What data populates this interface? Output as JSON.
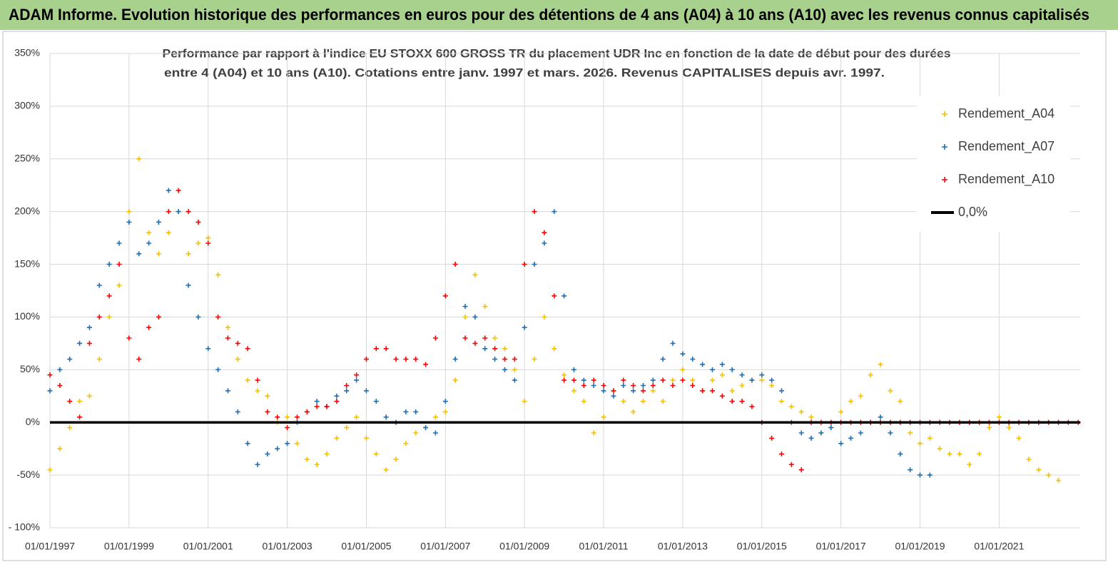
{
  "chart_data": {
    "type": "scatter",
    "title": "ADAM Informe. Evolution historique des performances en euros pour des détentions de 4 ans (A04) à 10 ans (A10) avec les revenus connus capitalisés",
    "subtitle": [
      "Performance par rapport à l'indice EU STOXX 600 GROSS TR  du placement UDR Inc en fonction de la date de début pour des durées",
      "entre 4 (A04) et 10 ans (A10). Cotations entre janv. 1997 et mars. 2026. Revenus CAPITALISES depuis avr. 1997."
    ],
    "x": [
      1997,
      1997.25,
      1997.5,
      1997.75,
      1998,
      1998.25,
      1998.5,
      1998.75,
      1999,
      1999.25,
      1999.5,
      1999.75,
      2000,
      2000.25,
      2000.5,
      2000.75,
      2001,
      2001.25,
      2001.5,
      2001.75,
      2002,
      2002.25,
      2002.5,
      2002.75,
      2003,
      2003.25,
      2003.5,
      2003.75,
      2004,
      2004.25,
      2004.5,
      2004.75,
      2005,
      2005.25,
      2005.5,
      2005.75,
      2006,
      2006.25,
      2006.5,
      2006.75,
      2007,
      2007.25,
      2007.5,
      2007.75,
      2008,
      2008.25,
      2008.5,
      2008.75,
      2009,
      2009.25,
      2009.5,
      2009.75,
      2010,
      2010.25,
      2010.5,
      2010.75,
      2011,
      2011.25,
      2011.5,
      2011.75,
      2012,
      2012.25,
      2012.5,
      2012.75,
      2013,
      2013.25,
      2013.5,
      2013.75,
      2014,
      2014.25,
      2014.5,
      2014.75,
      2015,
      2015.25,
      2015.5,
      2015.75,
      2016,
      2016.25,
      2016.5,
      2016.75,
      2017,
      2017.25,
      2017.5,
      2017.75,
      2018,
      2018.25,
      2018.5,
      2018.75,
      2019,
      2019.25,
      2019.5,
      2019.75,
      2020,
      2020.25,
      2020.5,
      2020.75,
      2021,
      2021.25,
      2021.5,
      2021.75,
      2022,
      2022.25,
      2022.5,
      2022.75,
      2023
    ],
    "series": [
      {
        "name": "Rendement_A04",
        "color": "#f5c000",
        "values": [
          -45,
          -25,
          -5,
          20,
          25,
          60,
          100,
          130,
          200,
          250,
          180,
          160,
          180,
          200,
          160,
          170,
          175,
          140,
          90,
          60,
          40,
          30,
          25,
          0,
          5,
          -20,
          -35,
          -40,
          -30,
          -15,
          -5,
          5,
          -15,
          -30,
          -45,
          -35,
          -20,
          -10,
          -5,
          5,
          10,
          40,
          100,
          140,
          110,
          80,
          70,
          50,
          20,
          60,
          100,
          70,
          45,
          30,
          20,
          -10,
          5,
          30,
          20,
          10,
          20,
          30,
          20,
          40,
          50,
          40,
          30,
          40,
          45,
          30,
          35,
          40,
          40,
          35,
          20,
          15,
          10,
          5,
          -10,
          -5,
          10,
          20,
          25,
          45,
          55,
          30,
          20,
          -10,
          -20,
          -15,
          -25,
          -30,
          -30,
          -40,
          -30,
          -5,
          5,
          -5,
          -15,
          -35,
          -45,
          -50,
          -55,
          null,
          null
        ]
      },
      {
        "name": "Rendement_A07",
        "color": "#1f6fb5",
        "values": [
          30,
          50,
          60,
          75,
          90,
          130,
          150,
          170,
          190,
          160,
          170,
          190,
          220,
          200,
          130,
          100,
          70,
          50,
          30,
          10,
          -20,
          -40,
          -30,
          -25,
          -20,
          0,
          10,
          20,
          15,
          25,
          30,
          40,
          30,
          20,
          5,
          0,
          10,
          10,
          -5,
          -10,
          20,
          60,
          110,
          100,
          70,
          60,
          50,
          40,
          90,
          150,
          170,
          200,
          120,
          50,
          40,
          35,
          30,
          25,
          35,
          30,
          35,
          40,
          60,
          75,
          65,
          60,
          55,
          50,
          55,
          50,
          45,
          40,
          45,
          40,
          30,
          0,
          -10,
          -15,
          -10,
          -5,
          -20,
          -15,
          -10,
          0,
          5,
          -10,
          -30,
          -45,
          -50,
          -50,
          null,
          null,
          null,
          null,
          null,
          null,
          null,
          null,
          null,
          null,
          null,
          null,
          null,
          null,
          null
        ]
      },
      {
        "name": "Rendement_A10",
        "color": "#ff0000",
        "values": [
          45,
          35,
          20,
          5,
          75,
          100,
          120,
          150,
          80,
          60,
          90,
          100,
          200,
          220,
          200,
          190,
          170,
          100,
          80,
          75,
          70,
          40,
          10,
          5,
          -5,
          5,
          10,
          15,
          15,
          20,
          35,
          45,
          60,
          70,
          70,
          60,
          60,
          60,
          55,
          80,
          120,
          150,
          80,
          75,
          80,
          70,
          60,
          60,
          150,
          200,
          180,
          120,
          40,
          40,
          35,
          40,
          35,
          30,
          40,
          35,
          30,
          35,
          40,
          35,
          40,
          35,
          30,
          30,
          25,
          20,
          20,
          15,
          0,
          -15,
          -30,
          -40,
          -45,
          0,
          0,
          0,
          0,
          0,
          0,
          0,
          0,
          0,
          0,
          0,
          0,
          0,
          0,
          0,
          0,
          0,
          0,
          0,
          0,
          0,
          0,
          0,
          0,
          0,
          0,
          0,
          0
        ]
      },
      {
        "name": "0,0%",
        "color": "#000000",
        "type": "line",
        "x": [
          1997,
          2023.05
        ],
        "values": [
          0,
          0
        ]
      }
    ],
    "xlim": [
      1997,
      2023.05
    ],
    "xticks": [
      {
        "value": 1997,
        "label": "01/01/1997"
      },
      {
        "value": 1999,
        "label": "01/01/1999"
      },
      {
        "value": 2001,
        "label": "01/01/2001"
      },
      {
        "value": 2003,
        "label": "01/01/2003"
      },
      {
        "value": 2005,
        "label": "01/01/2005"
      },
      {
        "value": 2007,
        "label": "01/01/2007"
      },
      {
        "value": 2009,
        "label": "01/01/2009"
      },
      {
        "value": 2011,
        "label": "01/01/2011"
      },
      {
        "value": 2013,
        "label": "01/01/2013"
      },
      {
        "value": 2015,
        "label": "01/01/2015"
      },
      {
        "value": 2017,
        "label": "01/01/2017"
      },
      {
        "value": 2019,
        "label": "01/01/2019"
      },
      {
        "value": 2021,
        "label": "01/01/2021"
      }
    ],
    "ylim": [
      -100,
      350
    ],
    "yticks": [
      {
        "value": -100,
        "label": "- 100%"
      },
      {
        "value": -50,
        "label": "-50%"
      },
      {
        "value": 0,
        "label": "0%"
      },
      {
        "value": 50,
        "label": "50%"
      },
      {
        "value": 100,
        "label": "100%"
      },
      {
        "value": 150,
        "label": "150%"
      },
      {
        "value": 200,
        "label": "200%"
      },
      {
        "value": 250,
        "label": "250%"
      },
      {
        "value": 300,
        "label": "300%"
      },
      {
        "value": 350,
        "label": "350%"
      }
    ],
    "grid": true,
    "legend": "upper right"
  }
}
